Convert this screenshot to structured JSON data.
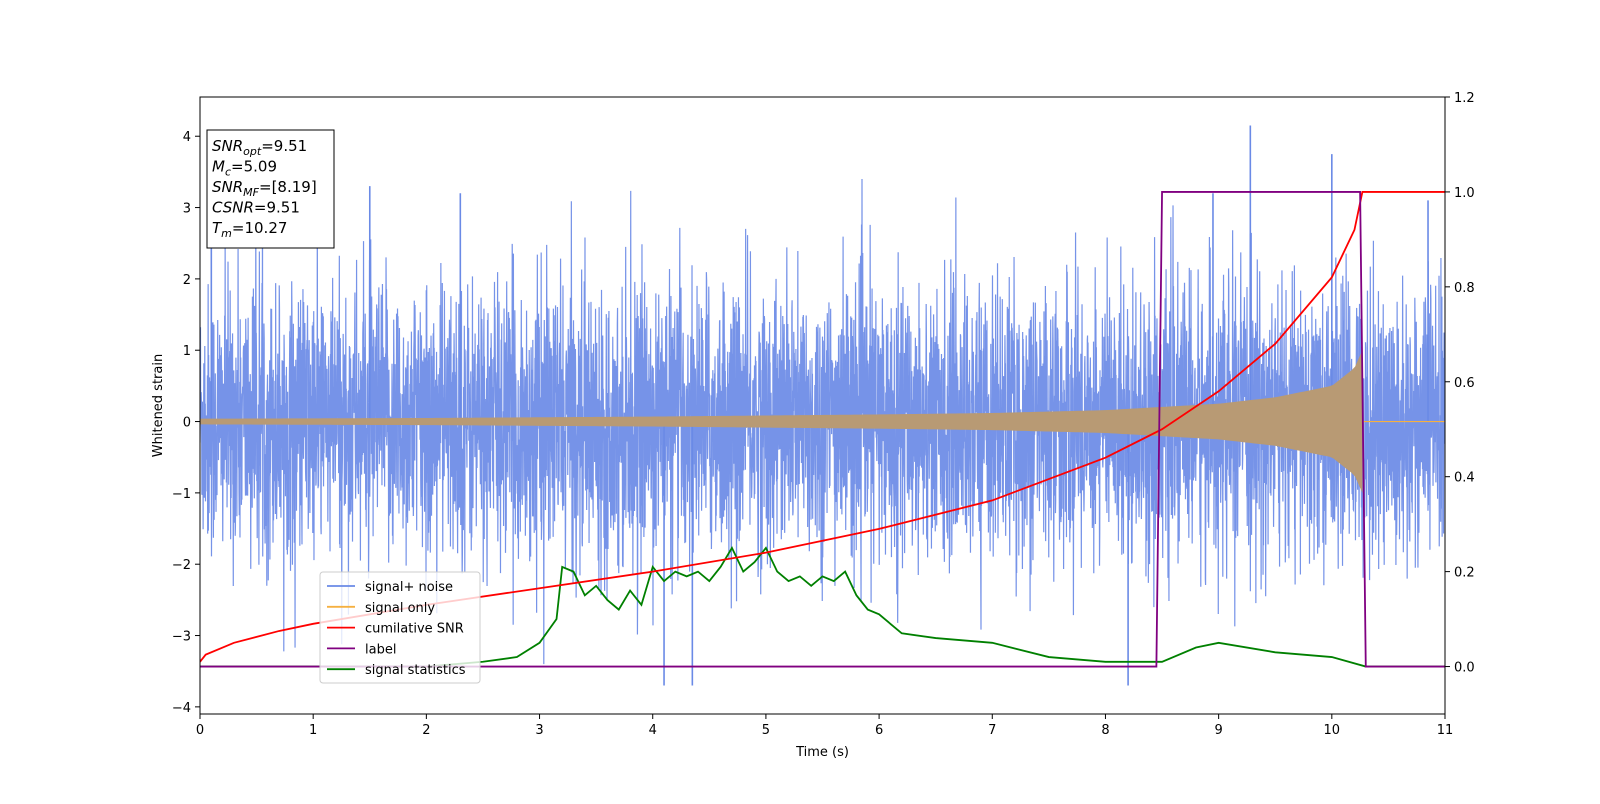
{
  "chart_data": {
    "type": "line",
    "xlabel": "Time (s)",
    "ylabel": "Whitened strain",
    "xlim": [
      0,
      11
    ],
    "ylim_left": [
      -4.1,
      4.55
    ],
    "ylim_right": [
      -0.1,
      1.2
    ],
    "x_ticks": [
      0,
      1,
      2,
      3,
      4,
      5,
      6,
      7,
      8,
      9,
      10,
      11
    ],
    "y_ticks_left": [
      -4,
      -3,
      -2,
      -1,
      0,
      1,
      2,
      3,
      4
    ],
    "y_ticks_right": [
      0.0,
      0.2,
      0.4,
      0.6,
      0.8,
      1.0,
      1.2
    ],
    "y_tick_labels_left": [
      "−4",
      "−3",
      "−2",
      "−1",
      "0",
      "1",
      "2",
      "3",
      "4"
    ],
    "y_tick_labels_right": [
      "0.0",
      "0.2",
      "0.4",
      "0.6",
      "0.8",
      "1.0",
      "1.2"
    ],
    "legend_position": "lower-left",
    "grid": false,
    "series": [
      {
        "name": "signal+ noise",
        "axis": "left",
        "color": "#6a8ae6",
        "description": "dense noisy trace, amplitude about ±2.3 with spikes",
        "peaks": [
          [
            0.1,
            2.8
          ],
          [
            1.5,
            3.3
          ],
          [
            2.3,
            3.2
          ],
          [
            4.35,
            -3.7
          ],
          [
            4.1,
            -3.7
          ],
          [
            8.2,
            -3.7
          ],
          [
            8.95,
            3.2
          ],
          [
            9.28,
            4.15
          ],
          [
            10.0,
            3.75
          ],
          [
            10.85,
            3.1
          ]
        ]
      },
      {
        "name": "signal only",
        "axis": "left",
        "color": "#f5b041",
        "description": "chirp with growing amplitude ending at merger",
        "envelope": [
          [
            0,
            0.04
          ],
          [
            2,
            0.05
          ],
          [
            4,
            0.07
          ],
          [
            6,
            0.1
          ],
          [
            7,
            0.12
          ],
          [
            8,
            0.16
          ],
          [
            9,
            0.25
          ],
          [
            9.5,
            0.34
          ],
          [
            10,
            0.5
          ],
          [
            10.2,
            0.75
          ],
          [
            10.27,
            1.0
          ],
          [
            10.3,
            0.0
          ],
          [
            11,
            0.0
          ]
        ]
      },
      {
        "name": "cumilative SNR",
        "axis": "right",
        "color": "#ff0000",
        "x": [
          0.0,
          0.05,
          0.3,
          0.7,
          1.0,
          2.0,
          3.0,
          4.0,
          5.0,
          6.0,
          7.0,
          8.0,
          8.5,
          9.0,
          9.5,
          10.0,
          10.2,
          10.27,
          10.3,
          11.0
        ],
        "y": [
          0.01,
          0.025,
          0.05,
          0.075,
          0.09,
          0.13,
          0.165,
          0.2,
          0.24,
          0.29,
          0.35,
          0.44,
          0.5,
          0.58,
          0.68,
          0.82,
          0.92,
          1.0,
          1.0,
          1.0
        ]
      },
      {
        "name": "label",
        "axis": "right",
        "color": "#800080",
        "x": [
          0.0,
          8.45,
          8.5,
          10.25,
          10.3,
          11.0
        ],
        "y": [
          0.0,
          0.0,
          1.0,
          1.0,
          0.0,
          0.0
        ]
      },
      {
        "name": "signal statistics",
        "axis": "right",
        "color": "#008000",
        "x": [
          0.0,
          1.0,
          2.0,
          2.5,
          2.8,
          3.0,
          3.15,
          3.2,
          3.3,
          3.4,
          3.5,
          3.6,
          3.7,
          3.8,
          3.9,
          4.0,
          4.1,
          4.2,
          4.3,
          4.4,
          4.5,
          4.6,
          4.7,
          4.8,
          4.9,
          5.0,
          5.1,
          5.2,
          5.3,
          5.4,
          5.5,
          5.6,
          5.7,
          5.8,
          5.9,
          6.0,
          6.2,
          6.5,
          7.0,
          7.5,
          8.0,
          8.5,
          8.8,
          9.0,
          9.5,
          10.0,
          10.3,
          11.0
        ],
        "y": [
          0.0,
          0.0,
          0.0,
          0.01,
          0.02,
          0.05,
          0.1,
          0.21,
          0.2,
          0.15,
          0.17,
          0.14,
          0.12,
          0.16,
          0.13,
          0.21,
          0.18,
          0.2,
          0.19,
          0.2,
          0.18,
          0.21,
          0.25,
          0.2,
          0.22,
          0.25,
          0.2,
          0.18,
          0.19,
          0.17,
          0.19,
          0.18,
          0.2,
          0.15,
          0.12,
          0.11,
          0.07,
          0.06,
          0.05,
          0.02,
          0.01,
          0.01,
          0.04,
          0.05,
          0.03,
          0.02,
          0.0,
          0.0
        ]
      }
    ],
    "info_box": [
      {
        "main": "SNR",
        "sub": "opt",
        "rest": "=9.51"
      },
      {
        "main": "M",
        "sub": "c",
        "rest": "=5.09"
      },
      {
        "main": "SNR",
        "sub": "MF",
        "rest": "=[8.19]"
      },
      {
        "main": "CSNR",
        "sub": "",
        "rest": "=9.51"
      },
      {
        "main": "T",
        "sub": "m",
        "rest": "=10.27"
      }
    ]
  }
}
